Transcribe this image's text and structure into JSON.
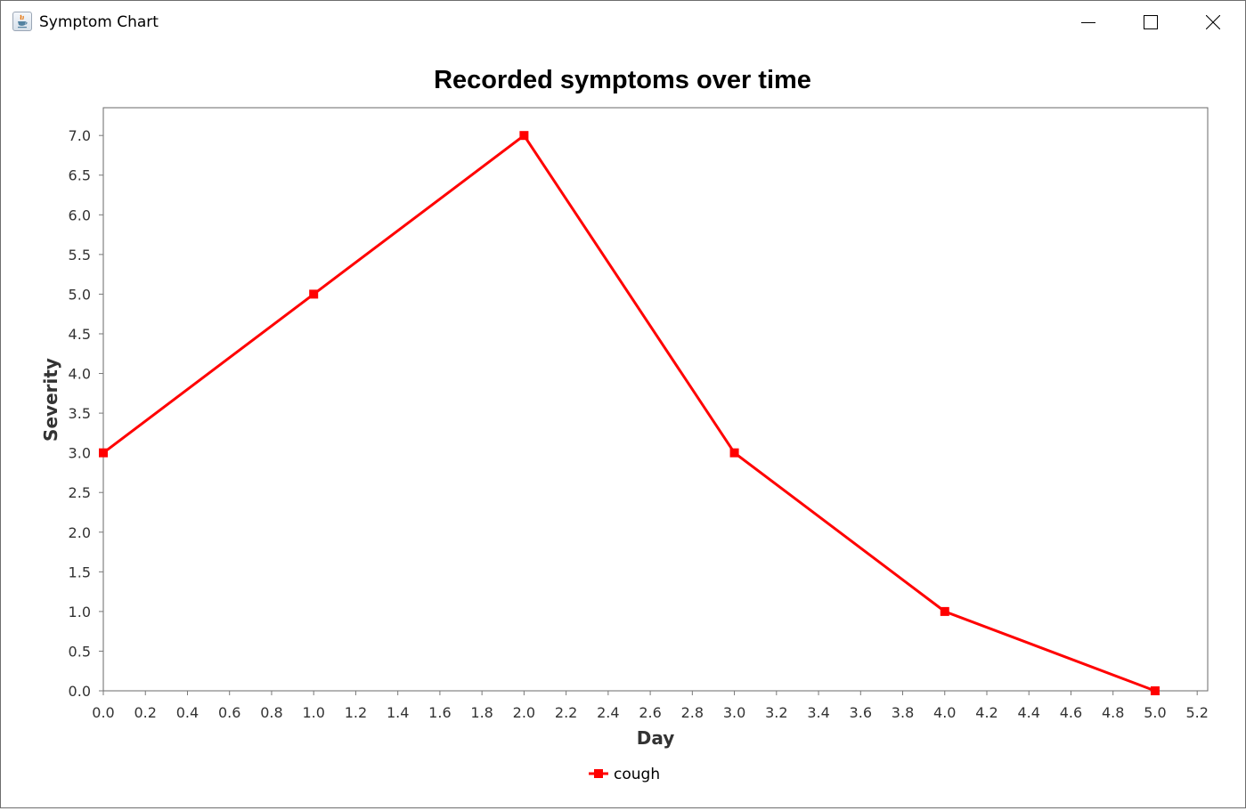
{
  "window": {
    "title": "Symptom Chart",
    "icon": "java-cup-icon"
  },
  "controls": {
    "minimize": "minimize-icon",
    "maximize": "maximize-icon",
    "close": "close-icon"
  },
  "chart_data": {
    "type": "line",
    "title": "Recorded symptoms over time",
    "xlabel": "Day",
    "ylabel": "Severity",
    "xlim": [
      0.0,
      5.25
    ],
    "ylim": [
      0.0,
      7.35
    ],
    "x_ticks": [
      "0.0",
      "0.2",
      "0.4",
      "0.6",
      "0.8",
      "1.0",
      "1.2",
      "1.4",
      "1.6",
      "1.8",
      "2.0",
      "2.2",
      "2.4",
      "2.6",
      "2.8",
      "3.0",
      "3.2",
      "3.4",
      "3.6",
      "3.8",
      "4.0",
      "4.2",
      "4.4",
      "4.6",
      "4.8",
      "5.0",
      "5.2"
    ],
    "y_ticks": [
      "0.0",
      "0.5",
      "1.0",
      "1.5",
      "2.0",
      "2.5",
      "3.0",
      "3.5",
      "4.0",
      "4.5",
      "5.0",
      "5.5",
      "6.0",
      "6.5",
      "7.0"
    ],
    "grid": false,
    "legend_position": "bottom-center",
    "series": [
      {
        "name": "cough",
        "color": "#ff0000",
        "marker": "square",
        "x": [
          0,
          1,
          2,
          3,
          4,
          5
        ],
        "y": [
          3,
          5,
          7,
          3,
          1,
          0
        ]
      }
    ]
  }
}
